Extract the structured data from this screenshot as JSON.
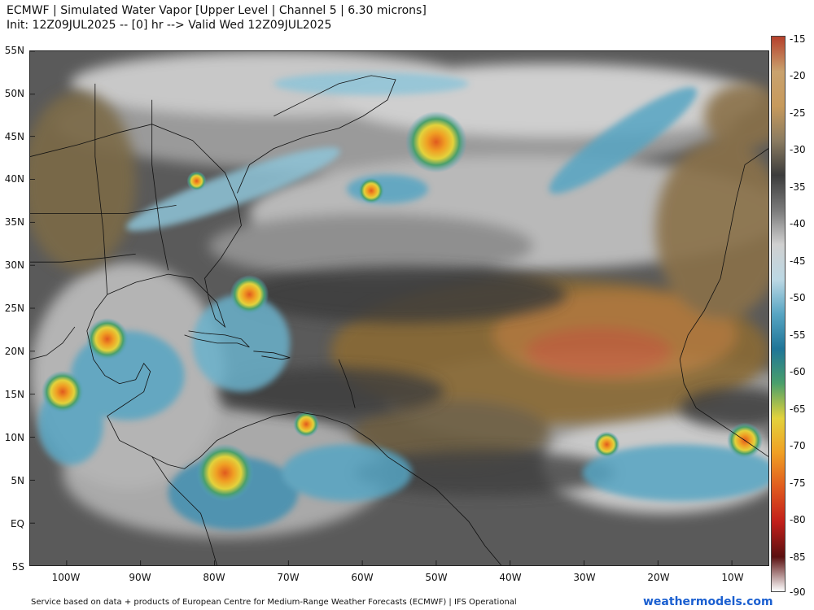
{
  "header": {
    "title_line1": "ECMWF | Simulated Water Vapor [Upper Level | Channel 5 | 6.30 microns]",
    "title_line2": "Init: 12Z09JUL2025 -- [0] hr --> Valid Wed 12Z09JUL2025"
  },
  "map": {
    "lat_labels": [
      "55N",
      "50N",
      "45N",
      "40N",
      "35N",
      "30N",
      "25N",
      "20N",
      "15N",
      "10N",
      "5N",
      "EQ",
      "5S"
    ],
    "lon_labels": [
      "100W",
      "90W",
      "80W",
      "70W",
      "60W",
      "50W",
      "40W",
      "30W",
      "20W",
      "10W"
    ],
    "colorbar": {
      "labels": [
        "-15",
        "-20",
        "-25",
        "-30",
        "-35",
        "-40",
        "-45",
        "-50",
        "-55",
        "-60",
        "-65",
        "-70",
        "-75",
        "-80",
        "-85",
        "-90"
      ],
      "colors": [
        "#b5402b",
        "#c9a26e",
        "#c79a5c",
        "#8a7b60",
        "#3c3c3c",
        "#7a7a7a",
        "#d0d0d0",
        "#bcd8e4",
        "#57a5c3",
        "#1f7598",
        "#4a9f6b",
        "#e3d23c",
        "#f0a024",
        "#e05a1e",
        "#c21f1a",
        "#5a1010",
        "#ffffff"
      ]
    }
  },
  "footer": {
    "credit": "Service based on data + products of European Centre for Medium-Range Weather Forecasts (ECMWF) | IFS Operational",
    "brand": "weathermodels.com"
  }
}
